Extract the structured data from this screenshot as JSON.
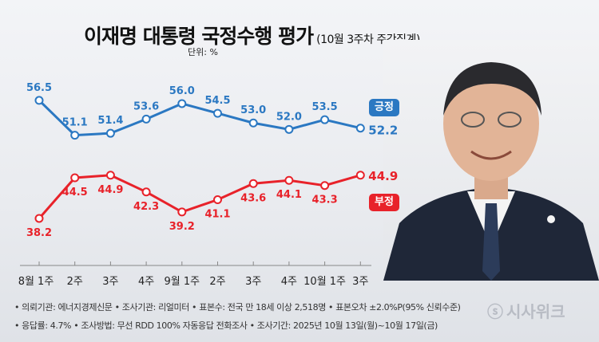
{
  "title": "이재명 대통령 국정수행 평가",
  "subtitle": "(10월 3주차 주간집계)",
  "unit": "단위: %",
  "colors": {
    "positive": "#2b78c2",
    "negative": "#e8222a",
    "axis": "#888888"
  },
  "chart_data": {
    "type": "line",
    "title": "이재명 대통령 국정수행 평가",
    "categories": [
      "8월 1주",
      "2주",
      "3주",
      "4주",
      "9월 1주",
      "2주",
      "3주",
      "4주",
      "10월 1주",
      "3주"
    ],
    "series": [
      {
        "name": "긍정",
        "values": [
          56.5,
          51.1,
          51.4,
          53.6,
          56.0,
          54.5,
          53.0,
          52.0,
          53.5,
          52.2
        ]
      },
      {
        "name": "부정",
        "values": [
          38.2,
          44.5,
          44.9,
          42.3,
          39.2,
          41.1,
          43.6,
          44.1,
          43.3,
          44.9
        ]
      }
    ],
    "value_labels": {
      "positive": [
        "56.5",
        "51.1",
        "51.4",
        "53.6",
        "56.0",
        "54.5",
        "53.0",
        "52.0",
        "53.5",
        "52.2"
      ],
      "negative": [
        "38.2",
        "44.5",
        "44.9",
        "42.3",
        "39.2",
        "41.1",
        "43.6",
        "44.1",
        "43.3",
        "44.9"
      ]
    },
    "xlabel": "",
    "ylabel": "%",
    "legend": "right"
  },
  "footer": {
    "line1": "• 의뢰기관: 에너지경제신문 • 조사기관: 리얼미터 • 표본수: 전국 만 18세 이상 2,518명 • 표본오차 ±2.0%P(95% 신뢰수준)",
    "line2": "• 응답률: 4.7% • 조사방법: 무선 RDD 100% 자동응답 전화조사 • 조사기간: 2025년 10월 13일(월)~10월 17일(금)"
  },
  "logo": "시사위크"
}
